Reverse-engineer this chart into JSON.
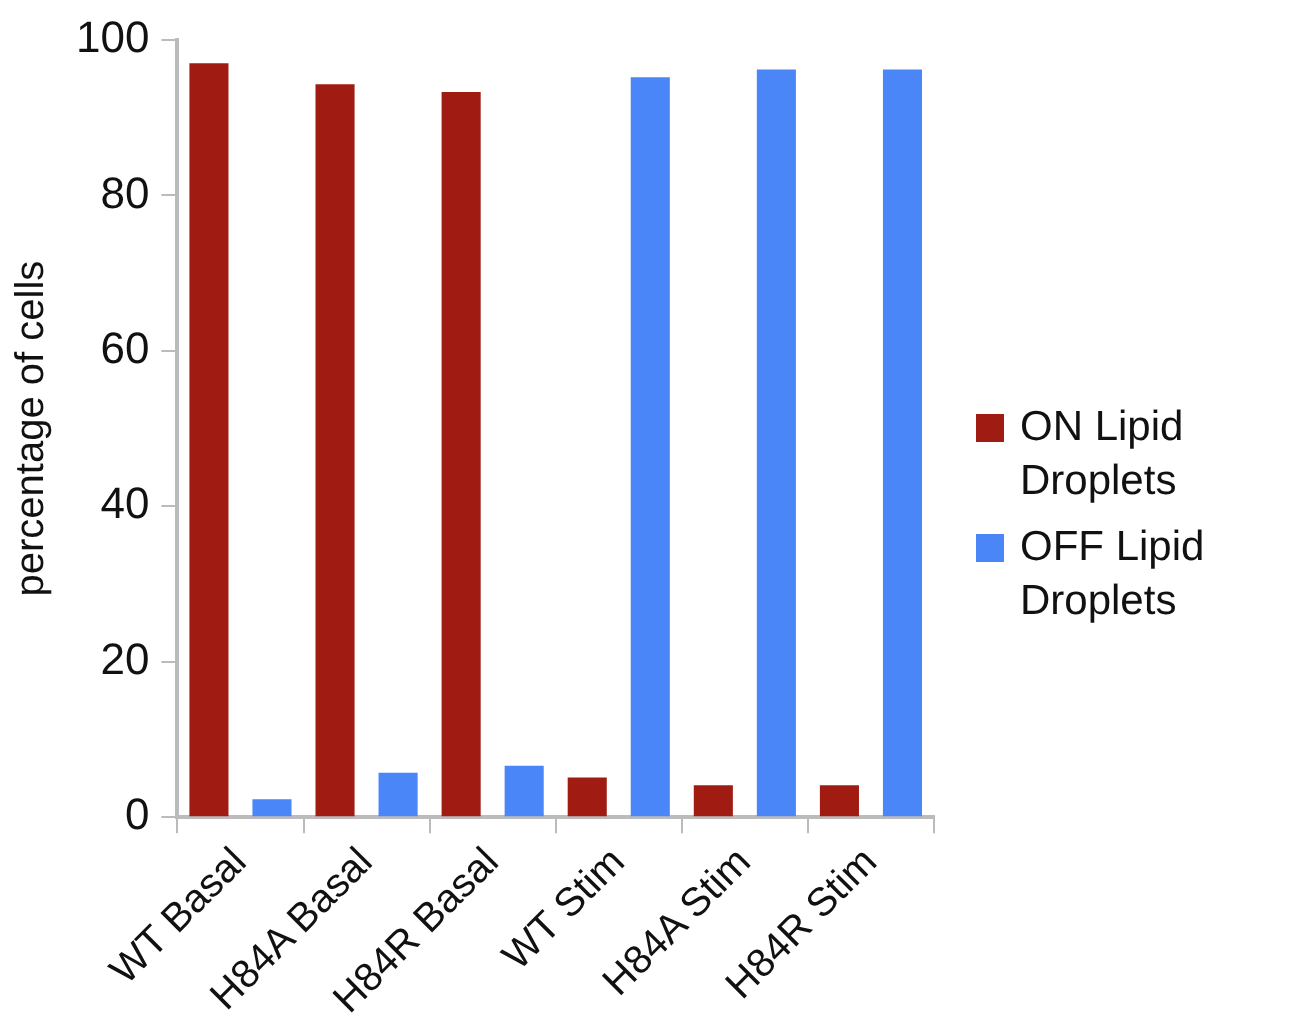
{
  "chart_data": {
    "type": "bar",
    "ylabel": "percentage of cells",
    "categories": [
      "WT Basal",
      "H84A Basal",
      "H84R Basal",
      "WT Stim",
      "H84A Stim",
      "H84R Stim"
    ],
    "series": [
      {
        "name": "ON Lipid Droplets",
        "color": "#a01c12",
        "values": [
          97,
          94.3,
          93.3,
          5.1,
          4.1,
          4.1
        ]
      },
      {
        "name": "OFF Lipid Droplets",
        "color": "#4a86f8",
        "values": [
          2.3,
          5.7,
          6.6,
          95.2,
          96.2,
          96.2
        ]
      }
    ],
    "ylim": [
      0,
      100
    ],
    "yticks": [
      0,
      20,
      40,
      60,
      80,
      100
    ],
    "grid": false,
    "legend": "right"
  }
}
